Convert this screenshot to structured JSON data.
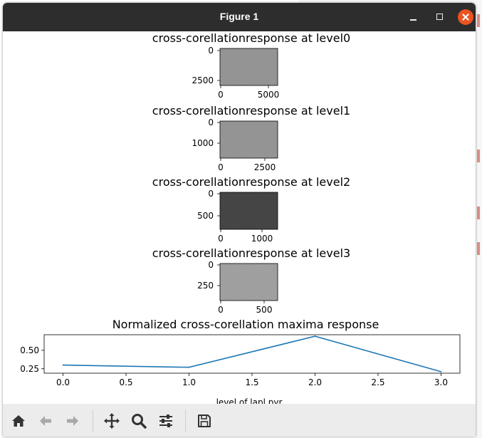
{
  "window": {
    "title": "Figure 1"
  },
  "figure": {
    "colors": {
      "line": "#1f77b4",
      "axis": "#000000",
      "text": "#000000",
      "image_light": "#8a8a8a",
      "image_mid": "#9a9a9a",
      "image_dark": "#3a3a3a"
    },
    "panels": [
      {
        "title": "cross-corellationresponse at level0",
        "yticks": [
          "0",
          "2500"
        ],
        "xticks": [
          "0",
          "5000"
        ],
        "tone": "image_light"
      },
      {
        "title": "cross-corellationresponse at level1",
        "yticks": [
          "0",
          "1000"
        ],
        "xticks": [
          "0",
          "2500"
        ],
        "tone": "image_light"
      },
      {
        "title": "cross-corellationresponse at level2",
        "yticks": [
          "0",
          "500"
        ],
        "xticks": [
          "0",
          "1000"
        ],
        "tone": "image_dark"
      },
      {
        "title": "cross-corellationresponse at level3",
        "yticks": [
          "0",
          "250"
        ],
        "xticks": [
          "0",
          "500"
        ],
        "tone": "image_mid"
      }
    ]
  },
  "chart_data": {
    "type": "line",
    "title": "Normalized cross-corellation maxima response",
    "xlabel": "level of lapl pyr",
    "ylabel": "",
    "x": [
      0,
      1,
      2,
      3
    ],
    "y": [
      0.3,
      0.27,
      0.69,
      0.21
    ],
    "xlim": [
      -0.15,
      3.15
    ],
    "ylim": [
      0.19,
      0.71
    ],
    "xticks": [
      0.0,
      0.5,
      1.0,
      1.5,
      2.0,
      2.5,
      3.0
    ],
    "xtick_labels": [
      "0.0",
      "0.5",
      "1.0",
      "1.5",
      "2.0",
      "2.5",
      "3.0"
    ],
    "yticks": [
      0.25,
      0.5
    ],
    "ytick_labels": [
      "0.25",
      "0.50"
    ],
    "grid": false
  },
  "toolbar": {
    "items": [
      {
        "name": "home-button",
        "icon": "home-icon"
      },
      {
        "name": "back-button",
        "icon": "arrow-left-icon"
      },
      {
        "name": "forward-button",
        "icon": "arrow-right-icon"
      },
      {
        "name": "pan-button",
        "icon": "move-icon"
      },
      {
        "name": "zoom-button",
        "icon": "magnifier-icon"
      },
      {
        "name": "configure-subplots-button",
        "icon": "sliders-icon"
      },
      {
        "name": "save-button",
        "icon": "floppy-disk-icon"
      }
    ]
  }
}
